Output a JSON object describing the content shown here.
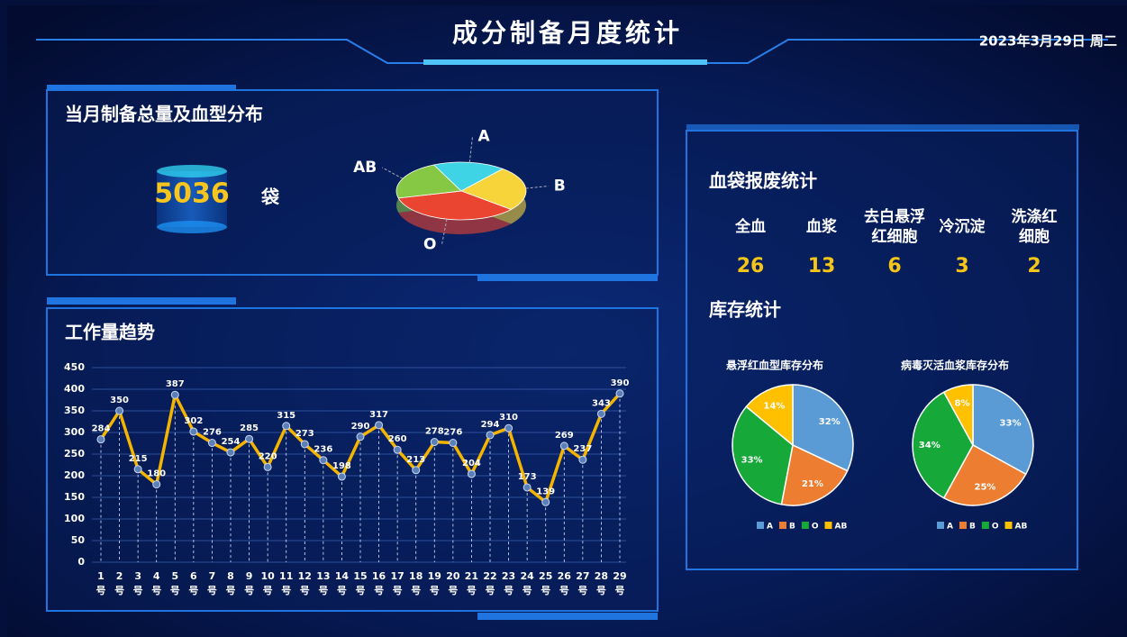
{
  "header": {
    "title": "成分制备月度统计",
    "date": "2023年3月29日 周二"
  },
  "summary": {
    "title": "当月制备总量及血型分布",
    "total": "5036",
    "unit": "袋"
  },
  "trend": {
    "title": "工作量趋势"
  },
  "scrap": {
    "title": "血袋报废统计",
    "items": [
      {
        "name": "全血",
        "value": "26"
      },
      {
        "name": "血浆",
        "value": "13"
      },
      {
        "name": "去白悬浮红细胞",
        "value": "6"
      },
      {
        "name": "冷沉淀",
        "value": "3"
      },
      {
        "name": "洗涤红细胞",
        "value": "2"
      }
    ]
  },
  "inventory": {
    "title": "库存统计"
  },
  "chart_data": [
    {
      "type": "pie3d",
      "categories": [
        "A",
        "B",
        "O",
        "AB"
      ],
      "values": [
        18,
        25,
        35,
        22
      ],
      "colors": [
        "#3fd3e6",
        "#f7d43a",
        "#ea4530",
        "#86c844"
      ]
    },
    {
      "type": "line",
      "categories": [
        "1号",
        "2号",
        "3号",
        "4号",
        "5号",
        "6号",
        "7号",
        "8号",
        "9号",
        "10号",
        "11号",
        "12号",
        "13号",
        "14号",
        "15号",
        "16号",
        "17号",
        "18号",
        "19号",
        "20号",
        "21号",
        "22号",
        "23号",
        "24号",
        "25号",
        "26号",
        "27号",
        "28号",
        "29号"
      ],
      "values": [
        284,
        350,
        215,
        180,
        387,
        302,
        276,
        254,
        285,
        220,
        315,
        273,
        236,
        198,
        290,
        317,
        260,
        213,
        278,
        276,
        204,
        294,
        310,
        173,
        139,
        269,
        237,
        343,
        390
      ],
      "color": "#f5b400",
      "ylim": [
        0,
        450
      ],
      "yticks": [
        0,
        50,
        100,
        150,
        200,
        250,
        300,
        350,
        400,
        450
      ],
      "grid": true
    },
    {
      "type": "pie",
      "title": "悬浮红血型库存分布",
      "categories": [
        "A",
        "B",
        "O",
        "AB"
      ],
      "values": [
        32,
        21,
        33,
        14
      ],
      "value_labels": [
        "32%",
        "21%",
        "33%",
        "14%"
      ],
      "colors": [
        "#5b9bd5",
        "#ed7d31",
        "#17a83a",
        "#ffc000"
      ]
    },
    {
      "type": "pie",
      "title": "病毒灭活血浆库存分布",
      "categories": [
        "A",
        "B",
        "O",
        "AB"
      ],
      "values": [
        33,
        25,
        34,
        8
      ],
      "value_labels": [
        "33%",
        "25%",
        "34%",
        "8%"
      ],
      "colors": [
        "#5b9bd5",
        "#ed7d31",
        "#17a83a",
        "#ffc000"
      ]
    }
  ]
}
